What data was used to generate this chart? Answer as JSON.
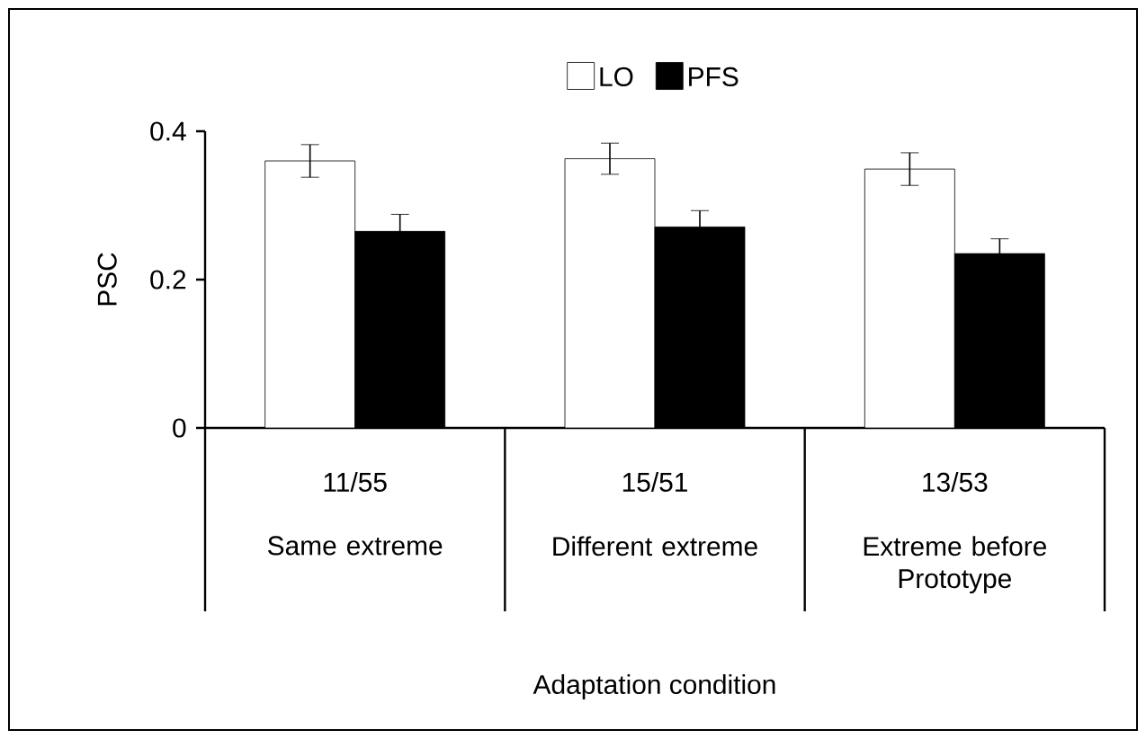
{
  "chart_data": {
    "type": "bar",
    "ylabel": "PSC",
    "xlabel": "Adaptation condition",
    "categories": [
      "Same extreme",
      "Different extreme",
      "Extreme before Prototype"
    ],
    "annotations": [
      "11/55",
      "15/51",
      "13/53"
    ],
    "series": [
      {
        "name": "LO",
        "color": "#ffffff",
        "values": [
          0.36,
          0.363,
          0.349
        ],
        "errors": [
          0.022,
          0.021,
          0.022
        ]
      },
      {
        "name": "PFS",
        "color": "#000000",
        "values": [
          0.265,
          0.271,
          0.235
        ],
        "errors": [
          0.023,
          0.022,
          0.02
        ]
      }
    ],
    "ylim": [
      0,
      0.4
    ],
    "yticks": [
      0,
      0.2,
      0.4
    ],
    "legend": "top",
    "grid": false
  }
}
